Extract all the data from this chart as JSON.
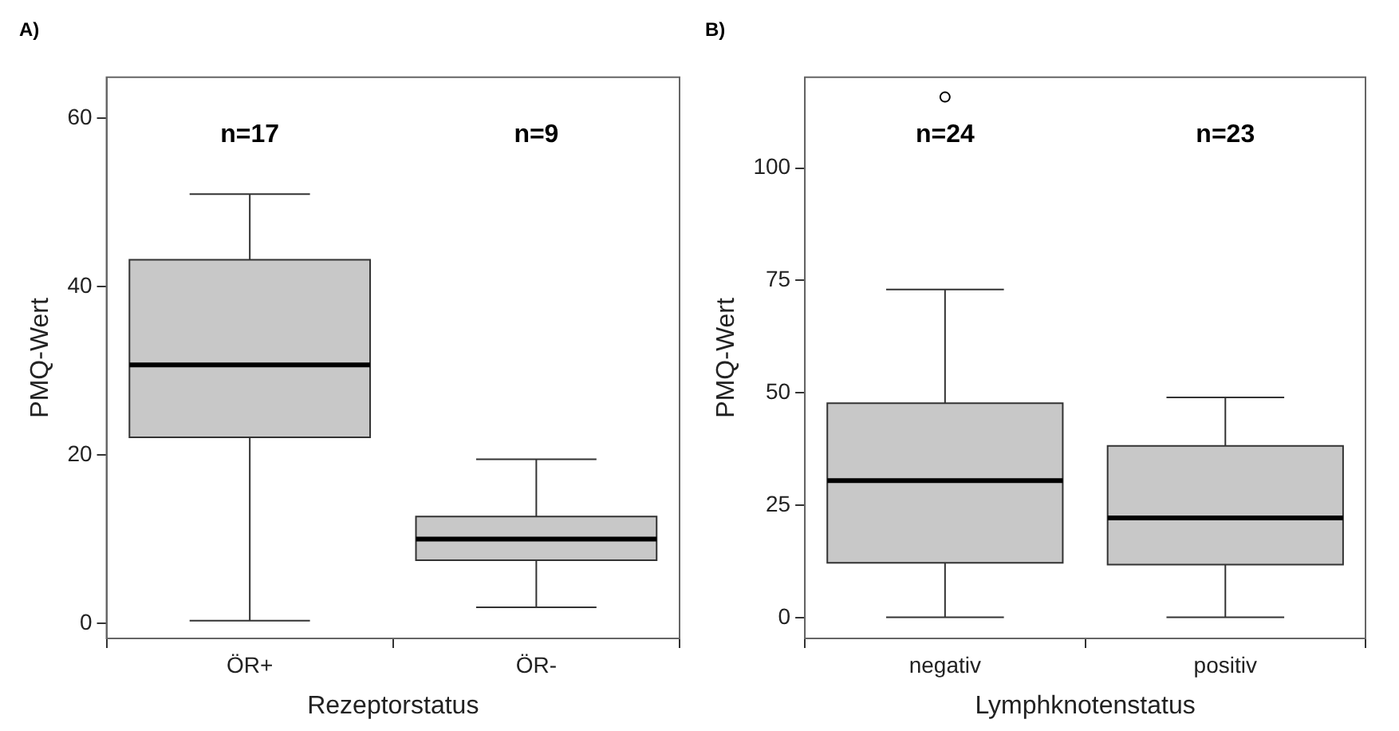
{
  "chart_data": [
    {
      "type": "box",
      "title": "A)",
      "xlabel": "Rezeptorstatus",
      "ylabel": "PMQ-Wert",
      "categories": [
        "ÖR+",
        "ÖR-"
      ],
      "color": "#c8c8c8",
      "boxes": [
        {
          "low": 0.3,
          "q1": 22.1,
          "median": 30.7,
          "q3": 43.2,
          "high": 51
        },
        {
          "low": 1.9,
          "q1": 7.5,
          "median": 10,
          "q3": 12.7,
          "high": 19.5
        }
      ],
      "ylim": [
        -1.8,
        64.9
      ],
      "yticks": [
        0,
        20,
        40,
        60
      ],
      "grid": false,
      "annotations": [
        "n=17",
        "n=9"
      ]
    },
    {
      "type": "box",
      "title": "B)",
      "xlabel": "Lymphknotenstatus",
      "ylabel": "PMQ-Wert",
      "categories": [
        "negativ",
        "positiv"
      ],
      "color": "#c8c8c8",
      "boxes": [
        {
          "low": 0.1,
          "q1": 12.2,
          "median": 30.5,
          "q3": 47.7,
          "high": 73,
          "outliers": [
            115.8
          ]
        },
        {
          "low": 0.1,
          "q1": 11.8,
          "median": 22.2,
          "q3": 38.2,
          "high": 49
        }
      ],
      "ylim": [
        -4.6,
        120.2
      ],
      "yticks": [
        0,
        25,
        50,
        75,
        100
      ],
      "grid": false,
      "annotations": [
        "n=24",
        "n=23"
      ]
    }
  ]
}
